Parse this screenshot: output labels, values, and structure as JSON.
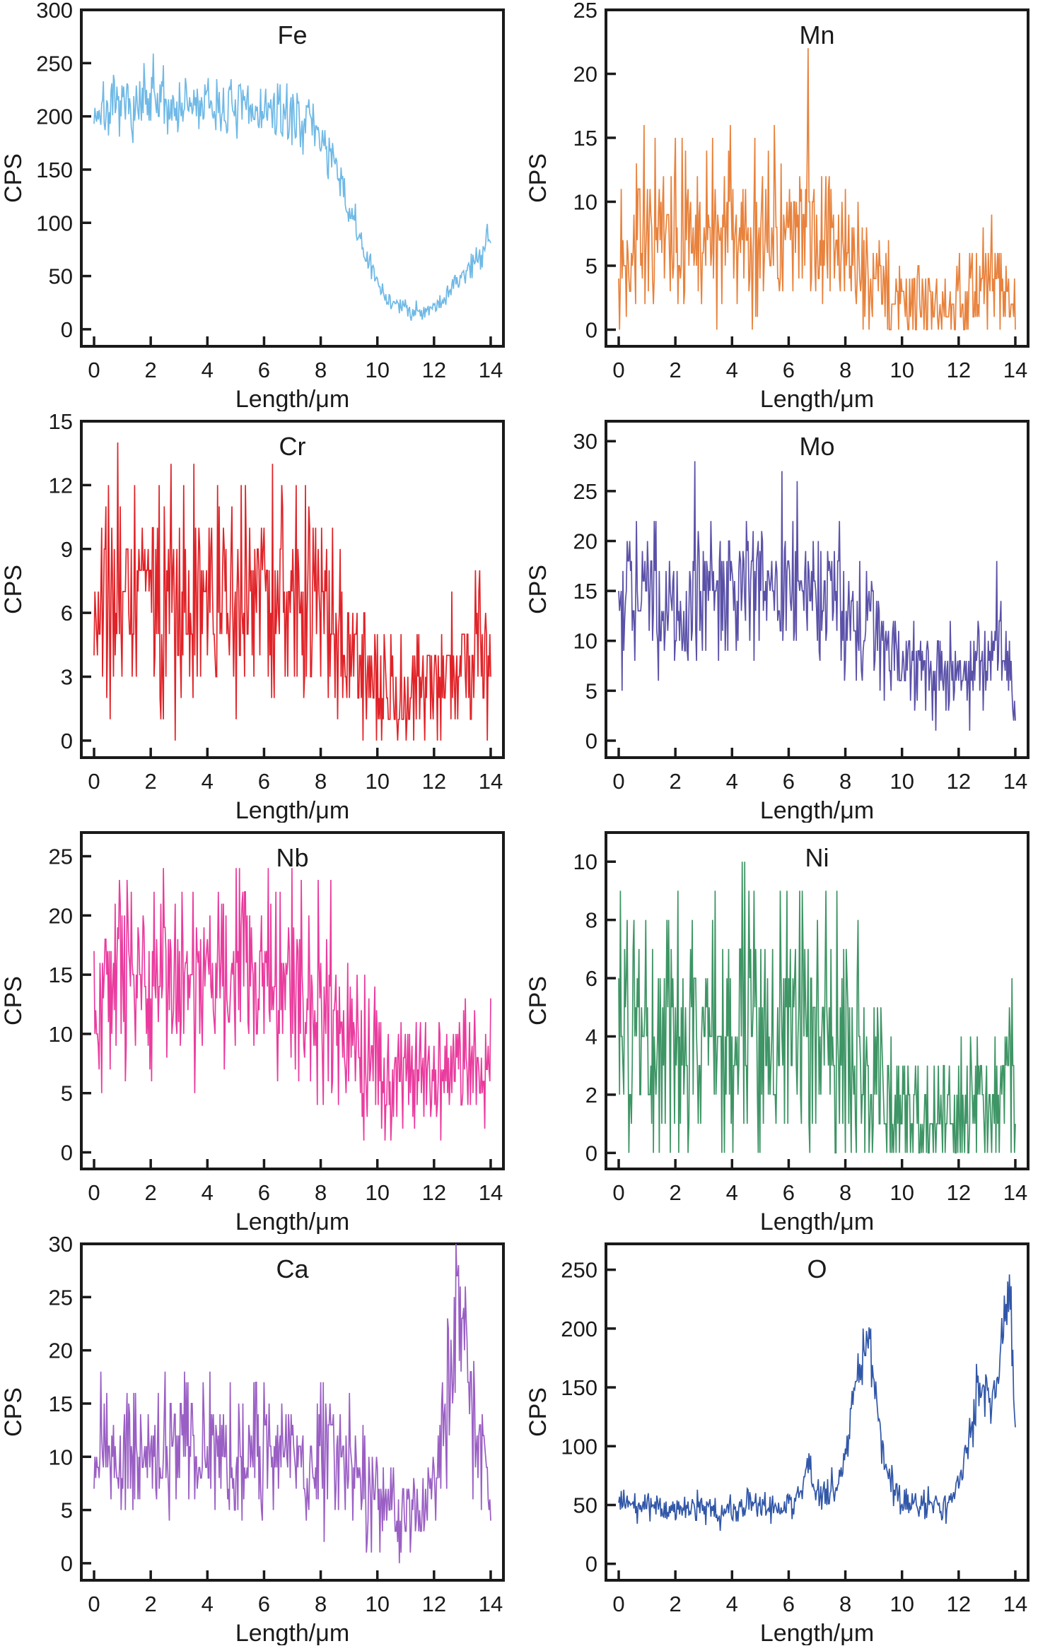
{
  "figure": {
    "xlabel": "Length/μm",
    "ylabel": "CPS",
    "xticks": [
      0,
      2,
      4,
      6,
      8,
      10,
      12,
      14
    ],
    "xlim": [
      0,
      14
    ],
    "text_color": "#1a1a1a",
    "frame_color": "#1a1a1a",
    "background": "#ffffff"
  },
  "chart_data": [
    {
      "type": "line",
      "element": "Fe",
      "color": "#6fb9e6",
      "xlabel": "Length/μm",
      "ylabel": "CPS",
      "yticks": [
        0,
        50,
        100,
        150,
        200,
        250,
        300
      ],
      "yaxis": [
        -16,
        300
      ],
      "ylim": [
        0,
        300
      ],
      "seed": 7,
      "noise_scale": 0.95,
      "trend": [
        [
          0,
          205
        ],
        [
          1,
          207
        ],
        [
          2,
          208
        ],
        [
          3,
          209
        ],
        [
          4,
          210
        ],
        [
          5,
          206
        ],
        [
          6,
          205
        ],
        [
          6.5,
          202
        ],
        [
          7,
          200
        ],
        [
          7.6,
          196
        ],
        [
          8,
          182
        ],
        [
          8.4,
          158
        ],
        [
          8.8,
          128
        ],
        [
          9.2,
          98
        ],
        [
          9.6,
          68
        ],
        [
          10,
          42
        ],
        [
          10.4,
          28
        ],
        [
          10.8,
          21
        ],
        [
          11.2,
          18
        ],
        [
          11.6,
          18
        ],
        [
          12,
          21
        ],
        [
          12.4,
          30
        ],
        [
          12.8,
          45
        ],
        [
          13.2,
          57
        ],
        [
          13.5,
          66
        ],
        [
          13.8,
          82
        ],
        [
          14,
          92
        ]
      ],
      "spikes": [
        [
          1.75,
          250
        ],
        [
          2.1,
          259
        ],
        [
          2.45,
          248
        ]
      ]
    },
    {
      "type": "line",
      "element": "Mn",
      "color": "#e8823c",
      "xlabel": "Length/μm",
      "ylabel": "CPS",
      "yticks": [
        0,
        5,
        10,
        15,
        20,
        25
      ],
      "yaxis": [
        -1.3,
        25
      ],
      "ylim": [
        0,
        25
      ],
      "seed": 13,
      "noise_scale": 1.05,
      "trend": [
        [
          0,
          6.5
        ],
        [
          0.5,
          7
        ],
        [
          1,
          7.2
        ],
        [
          1.5,
          7.5
        ],
        [
          2,
          7
        ],
        [
          2.5,
          7.5
        ],
        [
          3,
          7.2
        ],
        [
          3.5,
          7.5
        ],
        [
          4,
          7.5
        ],
        [
          4.5,
          7
        ],
        [
          5,
          7
        ],
        [
          5.5,
          7.2
        ],
        [
          6,
          7.5
        ],
        [
          6.5,
          7.5
        ],
        [
          7,
          7.2
        ],
        [
          7.5,
          7
        ],
        [
          8,
          6.2
        ],
        [
          8.5,
          5
        ],
        [
          9,
          3.8
        ],
        [
          9.5,
          3
        ],
        [
          10,
          2.6
        ],
        [
          10.5,
          2.2
        ],
        [
          11,
          2
        ],
        [
          11.5,
          2
        ],
        [
          12,
          2.4
        ],
        [
          12.5,
          2.8
        ],
        [
          12.9,
          4.2
        ],
        [
          13.2,
          4.2
        ],
        [
          13.6,
          3
        ],
        [
          14,
          2.6
        ]
      ],
      "spikes": [
        [
          0.9,
          16
        ],
        [
          2.0,
          15
        ],
        [
          3.3,
          15
        ],
        [
          3.95,
          16
        ],
        [
          4.8,
          15
        ],
        [
          5.5,
          16
        ],
        [
          6.7,
          22
        ]
      ]
    },
    {
      "type": "line",
      "element": "Cr",
      "color": "#e02328",
      "xlabel": "Length/μm",
      "ylabel": "CPS",
      "yticks": [
        0,
        3,
        6,
        9,
        12,
        15
      ],
      "yaxis": [
        -0.8,
        15
      ],
      "ylim": [
        0,
        15
      ],
      "seed": 21,
      "noise_scale": 1.0,
      "trend": [
        [
          0,
          5.5
        ],
        [
          0.3,
          6.5
        ],
        [
          1,
          6.8
        ],
        [
          2,
          6.6
        ],
        [
          3,
          7
        ],
        [
          4,
          6.6
        ],
        [
          5,
          6.8
        ],
        [
          6,
          6.8
        ],
        [
          6.5,
          7
        ],
        [
          7,
          6.6
        ],
        [
          7.5,
          6.4
        ],
        [
          8,
          6
        ],
        [
          8.4,
          5.2
        ],
        [
          8.8,
          4.2
        ],
        [
          9.2,
          3.4
        ],
        [
          9.6,
          2.8
        ],
        [
          10,
          2.4
        ],
        [
          10.5,
          2
        ],
        [
          11,
          2
        ],
        [
          11.5,
          2.4
        ],
        [
          12,
          2.4
        ],
        [
          12.5,
          3
        ],
        [
          13,
          3.4
        ],
        [
          13.5,
          4.2
        ],
        [
          14,
          3.6
        ]
      ],
      "spikes": [
        [
          0.5,
          12
        ],
        [
          0.85,
          14
        ],
        [
          2.3,
          12
        ],
        [
          3.15,
          12
        ],
        [
          4.35,
          12
        ],
        [
          5.35,
          12
        ],
        [
          6.3,
          13
        ],
        [
          7.45,
          12
        ]
      ]
    },
    {
      "type": "line",
      "element": "Mo",
      "color": "#5a51a8",
      "xlabel": "Length/μm",
      "ylabel": "CPS",
      "yticks": [
        0,
        5,
        10,
        15,
        20,
        25,
        30
      ],
      "yaxis": [
        -1.7,
        32
      ],
      "ylim": [
        0,
        30
      ],
      "seed": 34,
      "noise_scale": 0.9,
      "trend": [
        [
          0,
          14.5
        ],
        [
          0.5,
          15
        ],
        [
          1,
          14
        ],
        [
          1.5,
          13.5
        ],
        [
          2,
          13.8
        ],
        [
          2.5,
          14
        ],
        [
          3,
          14.5
        ],
        [
          3.5,
          14
        ],
        [
          4,
          14
        ],
        [
          4.5,
          14.5
        ],
        [
          5,
          15
        ],
        [
          5.5,
          16
        ],
        [
          6,
          15.5
        ],
        [
          6.5,
          15
        ],
        [
          7,
          15.5
        ],
        [
          7.5,
          14.8
        ],
        [
          8,
          14
        ],
        [
          8.5,
          12.5
        ],
        [
          9,
          11
        ],
        [
          9.5,
          9.5
        ],
        [
          10,
          8.2
        ],
        [
          10.5,
          7.2
        ],
        [
          11,
          6.6
        ],
        [
          11.5,
          6
        ],
        [
          12,
          6.8
        ],
        [
          12.5,
          7.5
        ],
        [
          13,
          8.2
        ],
        [
          13.3,
          9
        ],
        [
          13.6,
          9
        ],
        [
          13.85,
          7.5
        ],
        [
          14,
          4
        ]
      ],
      "spikes": [
        [
          1.3,
          22
        ],
        [
          2.7,
          28
        ],
        [
          4.5,
          22
        ],
        [
          5.75,
          27
        ],
        [
          6.3,
          26
        ],
        [
          7.8,
          22
        ],
        [
          13.35,
          18
        ]
      ]
    },
    {
      "type": "line",
      "element": "Nb",
      "color": "#ea3c9e",
      "xlabel": "Length/μm",
      "ylabel": "CPS",
      "yticks": [
        0,
        5,
        10,
        15,
        20,
        25
      ],
      "yaxis": [
        -1.4,
        27
      ],
      "ylim": [
        0,
        25
      ],
      "seed": 55,
      "noise_scale": 1.0,
      "trend": [
        [
          0,
          13.5
        ],
        [
          0.5,
          14.5
        ],
        [
          1,
          15
        ],
        [
          1.5,
          14.5
        ],
        [
          2,
          14.8
        ],
        [
          2.5,
          15
        ],
        [
          3,
          14.5
        ],
        [
          3.5,
          14.8
        ],
        [
          4,
          15
        ],
        [
          4.5,
          14.8
        ],
        [
          5,
          15.2
        ],
        [
          5.5,
          15.5
        ],
        [
          6,
          15
        ],
        [
          6.5,
          14.5
        ],
        [
          7,
          14
        ],
        [
          7.5,
          13.2
        ],
        [
          8,
          11.5
        ],
        [
          8.5,
          10.2
        ],
        [
          9,
          9.2
        ],
        [
          9.5,
          8.2
        ],
        [
          10,
          7.2
        ],
        [
          10.5,
          6.6
        ],
        [
          11,
          6.6
        ],
        [
          11.5,
          6.8
        ],
        [
          12,
          7
        ],
        [
          12.5,
          7
        ],
        [
          13,
          7.4
        ],
        [
          13.5,
          8
        ],
        [
          14,
          7
        ]
      ],
      "spikes": [
        [
          0.9,
          23
        ],
        [
          1.15,
          23
        ],
        [
          2.45,
          24
        ],
        [
          3.5,
          22
        ],
        [
          5.0,
          24
        ],
        [
          5.3,
          22
        ],
        [
          6.15,
          24
        ],
        [
          7.3,
          23
        ],
        [
          7.9,
          23
        ],
        [
          8.35,
          23
        ]
      ]
    },
    {
      "type": "line",
      "element": "Ni",
      "color": "#3e9565",
      "xlabel": "Length/μm",
      "ylabel": "CPS",
      "yticks": [
        0,
        2,
        4,
        6,
        8,
        10
      ],
      "yaxis": [
        -0.55,
        11
      ],
      "ylim": [
        0,
        10
      ],
      "seed": 89,
      "noise_scale": 1.12,
      "trend": [
        [
          0,
          4
        ],
        [
          0.5,
          4.2
        ],
        [
          1,
          4
        ],
        [
          1.5,
          3.8
        ],
        [
          2,
          4
        ],
        [
          2.5,
          4.2
        ],
        [
          3,
          4
        ],
        [
          3.5,
          4.2
        ],
        [
          4,
          4.5
        ],
        [
          4.5,
          4.4
        ],
        [
          5,
          4.4
        ],
        [
          5.5,
          4.5
        ],
        [
          6,
          4.4
        ],
        [
          6.5,
          4.5
        ],
        [
          7,
          4.2
        ],
        [
          7.5,
          4
        ],
        [
          8,
          3.6
        ],
        [
          8.5,
          3
        ],
        [
          9,
          2.2
        ],
        [
          9.5,
          1.7
        ],
        [
          10,
          1.3
        ],
        [
          10.5,
          1.1
        ],
        [
          11,
          1
        ],
        [
          11.5,
          1.2
        ],
        [
          12,
          1.4
        ],
        [
          12.5,
          1.5
        ],
        [
          13,
          1.6
        ],
        [
          13.5,
          2
        ],
        [
          14,
          2.6
        ]
      ],
      "spikes": [
        [
          0.3,
          8
        ],
        [
          0.55,
          8
        ],
        [
          2.1,
          9
        ],
        [
          2.6,
          8
        ],
        [
          3.4,
          9
        ],
        [
          4.35,
          10
        ],
        [
          4.6,
          9
        ],
        [
          6.4,
          9
        ],
        [
          7.3,
          9
        ],
        [
          7.7,
          9
        ],
        [
          8.45,
          8
        ]
      ]
    },
    {
      "type": "line",
      "element": "Ca",
      "color": "#9a5fc4",
      "xlabel": "Length/μm",
      "ylabel": "CPS",
      "yticks": [
        0,
        5,
        10,
        15,
        20,
        25,
        30
      ],
      "yaxis": [
        -1.6,
        30
      ],
      "ylim": [
        0,
        30
      ],
      "seed": 144,
      "noise_scale": 1.0,
      "trend": [
        [
          0,
          10.5
        ],
        [
          0.5,
          10
        ],
        [
          1,
          10.2
        ],
        [
          1.5,
          10
        ],
        [
          2,
          10.2
        ],
        [
          2.5,
          10
        ],
        [
          3,
          10.4
        ],
        [
          3.5,
          10.2
        ],
        [
          4,
          10
        ],
        [
          4.5,
          10.2
        ],
        [
          5,
          10
        ],
        [
          5.5,
          10.2
        ],
        [
          6,
          10.4
        ],
        [
          6.5,
          10.2
        ],
        [
          7,
          10
        ],
        [
          7.5,
          10.4
        ],
        [
          8,
          10
        ],
        [
          8.5,
          9.6
        ],
        [
          9,
          9
        ],
        [
          9.5,
          7.2
        ],
        [
          10,
          6
        ],
        [
          10.5,
          5.4
        ],
        [
          11,
          5
        ],
        [
          11.4,
          5
        ],
        [
          11.8,
          6
        ],
        [
          12.1,
          8
        ],
        [
          12.4,
          14
        ],
        [
          12.65,
          19
        ],
        [
          12.8,
          22
        ],
        [
          12.95,
          22
        ],
        [
          13.1,
          19.5
        ],
        [
          13.35,
          14.5
        ],
        [
          13.6,
          10.5
        ],
        [
          13.8,
          8
        ],
        [
          14,
          5
        ]
      ],
      "spikes": [
        [
          0.25,
          18
        ],
        [
          1.4,
          16
        ],
        [
          2.5,
          18
        ],
        [
          3.3,
          17
        ],
        [
          4.8,
          17
        ],
        [
          6.0,
          17
        ],
        [
          8.1,
          17
        ],
        [
          9.0,
          16
        ],
        [
          12.85,
          27
        ],
        [
          12.92,
          26
        ]
      ]
    },
    {
      "type": "line",
      "element": "O",
      "color": "#3157a8",
      "xlabel": "Length/μm",
      "ylabel": "CPS",
      "yticks": [
        0,
        50,
        100,
        150,
        200,
        250
      ],
      "yaxis": [
        -14,
        272
      ],
      "ylim": [
        0,
        250
      ],
      "seed": 233,
      "noise_scale": 0.95,
      "trend": [
        [
          0,
          55
        ],
        [
          0.3,
          50
        ],
        [
          0.6,
          48
        ],
        [
          1,
          48
        ],
        [
          1.5,
          50
        ],
        [
          2,
          46
        ],
        [
          2.5,
          48
        ],
        [
          3,
          50
        ],
        [
          3.3,
          44
        ],
        [
          3.6,
          42
        ],
        [
          4,
          46
        ],
        [
          4.5,
          49
        ],
        [
          5,
          50
        ],
        [
          5.5,
          49
        ],
        [
          6,
          50
        ],
        [
          6.3,
          55
        ],
        [
          6.55,
          75
        ],
        [
          6.7,
          85
        ],
        [
          6.85,
          72
        ],
        [
          7,
          60
        ],
        [
          7.2,
          58
        ],
        [
          7.5,
          60
        ],
        [
          7.8,
          70
        ],
        [
          8,
          90
        ],
        [
          8.2,
          125
        ],
        [
          8.4,
          155
        ],
        [
          8.55,
          172
        ],
        [
          8.7,
          182
        ],
        [
          8.85,
          180
        ],
        [
          9,
          160
        ],
        [
          9.15,
          130
        ],
        [
          9.3,
          105
        ],
        [
          9.5,
          80
        ],
        [
          9.7,
          62
        ],
        [
          10,
          53
        ],
        [
          10.5,
          50
        ],
        [
          11,
          50
        ],
        [
          11.5,
          47
        ],
        [
          11.8,
          55
        ],
        [
          12,
          66
        ],
        [
          12.2,
          85
        ],
        [
          12.4,
          105
        ],
        [
          12.6,
          135
        ],
        [
          12.8,
          150
        ],
        [
          13,
          148
        ],
        [
          13.1,
          132
        ],
        [
          13.25,
          145
        ],
        [
          13.4,
          160
        ],
        [
          13.55,
          195
        ],
        [
          13.7,
          225
        ],
        [
          13.8,
          228
        ],
        [
          13.9,
          180
        ],
        [
          14,
          105
        ]
      ],
      "spikes": [
        [
          8.62,
          200
        ],
        [
          8.75,
          198
        ],
        [
          12.62,
          170
        ],
        [
          13.72,
          240
        ]
      ]
    }
  ]
}
